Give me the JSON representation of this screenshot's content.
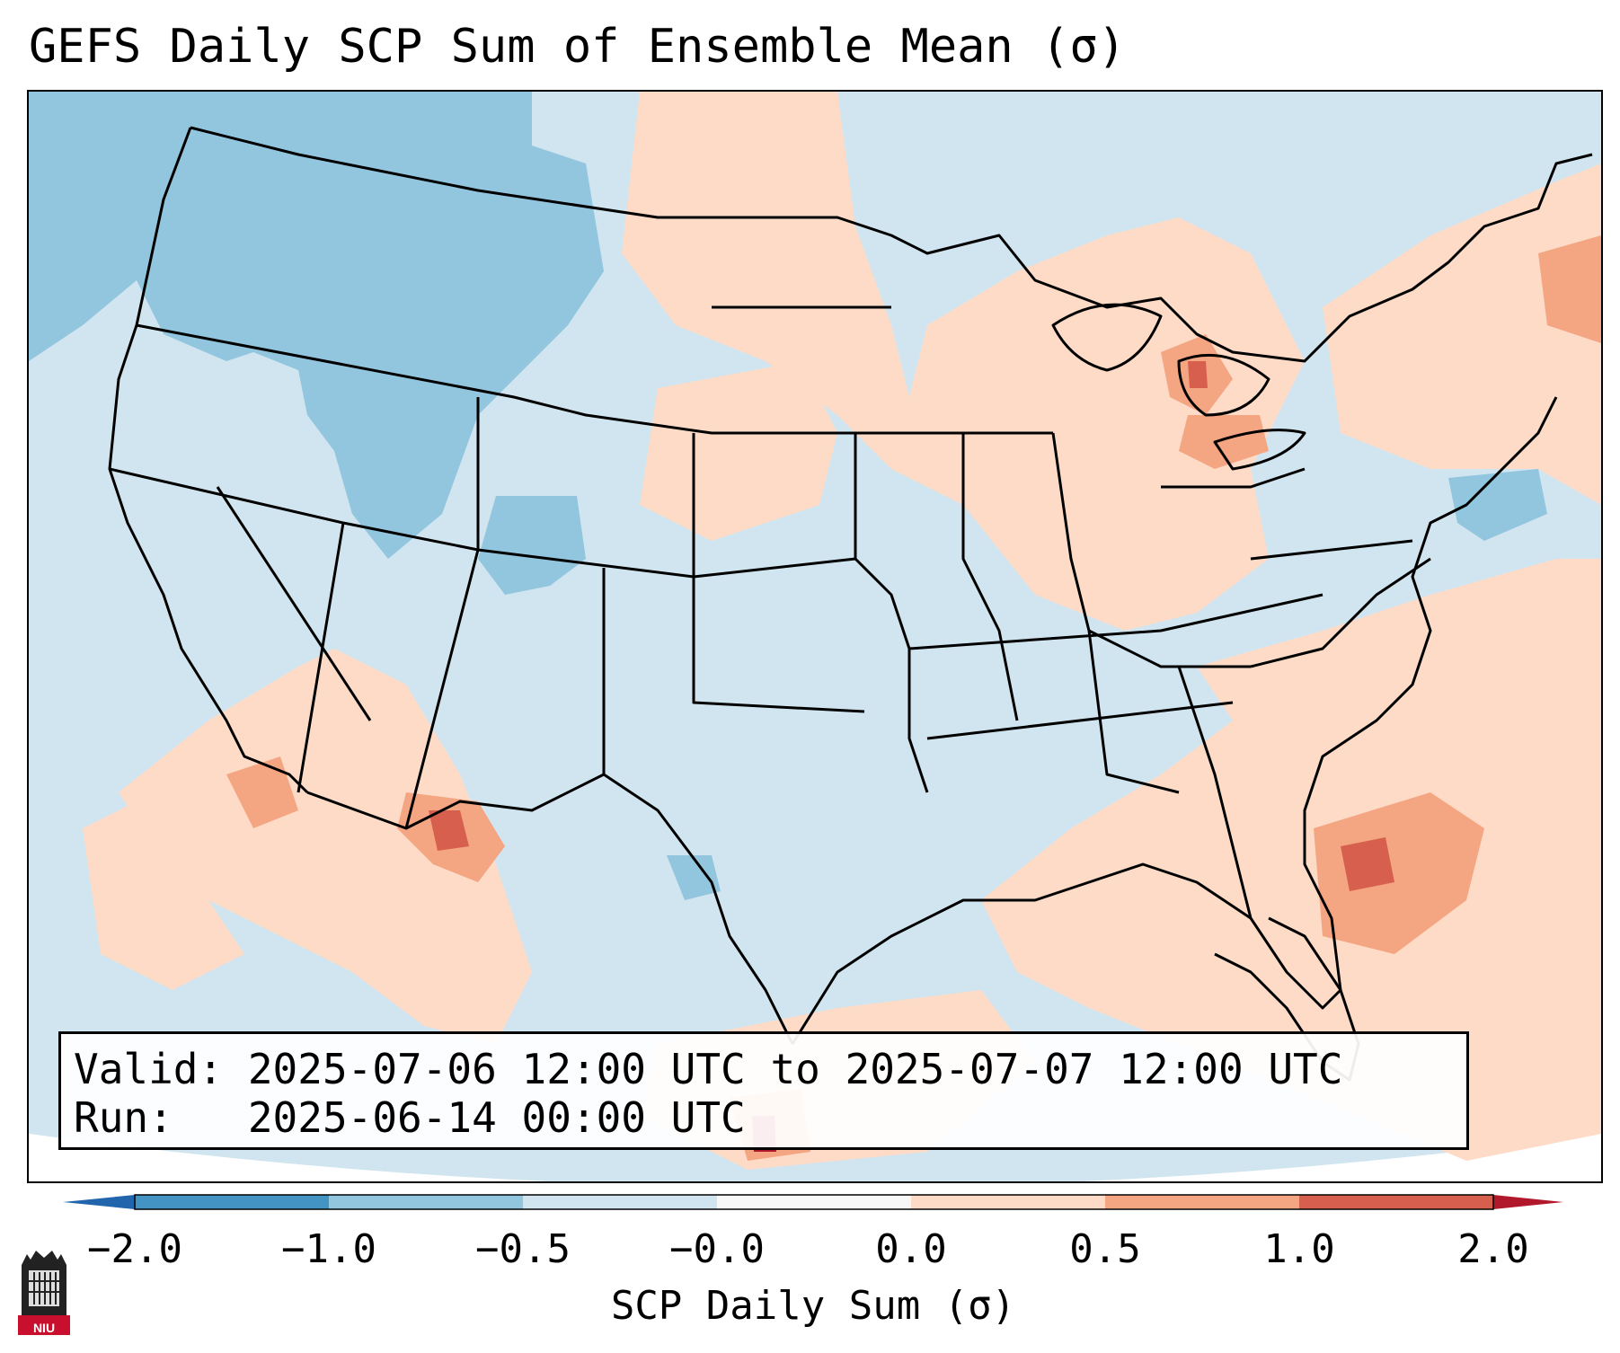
{
  "title": "GEFS Daily SCP Sum of Ensemble Mean (σ)",
  "info": {
    "valid_line": "Valid: 2025-07-06 12:00 UTC to 2025-07-07 12:00 UTC",
    "run_line": "Run:   2025-06-14 00:00 UTC"
  },
  "colorbar": {
    "label": "SCP Daily Sum (σ)",
    "ticks": [
      "−2.0",
      "−1.0",
      "−0.5",
      "−0.0",
      "0.0",
      "0.5",
      "1.0",
      "2.0"
    ],
    "colors": {
      "extend_low": "#2166ac",
      "neg2_neg1": "#4393c3",
      "neg1_neg05": "#92c5de",
      "neg05_0": "#d1e5f0",
      "zero": "#f7f7f7",
      "pos0_05": "#fddbc7",
      "pos05_1": "#f4a582",
      "pos1_2": "#d6604d",
      "extend_high": "#b2182b"
    }
  },
  "map_data": {
    "region": "Contiguous United States",
    "field": "SCP Daily Sum standardized anomaly",
    "features": [
      {
        "area": "Pacific Northwest / Idaho / Montana",
        "anomaly": "-0.5 to -1.0"
      },
      {
        "area": "Upper Midwest / Great Lakes",
        "anomaly": "0.0 to 0.5"
      },
      {
        "area": "Lower Michigan / Lake Erie",
        "anomaly": "0.5 to 1.0"
      },
      {
        "area": "Arizona / New Mexico border",
        "anomaly": "0.5 to 1.0"
      },
      {
        "area": "Florida Atlantic coast offshore",
        "anomaly": "0.5 to 1.0"
      },
      {
        "area": "Texas / Southern Plains",
        "anomaly": "-0.5 to 0.0"
      }
    ]
  },
  "logo": {
    "text": "NIU"
  }
}
